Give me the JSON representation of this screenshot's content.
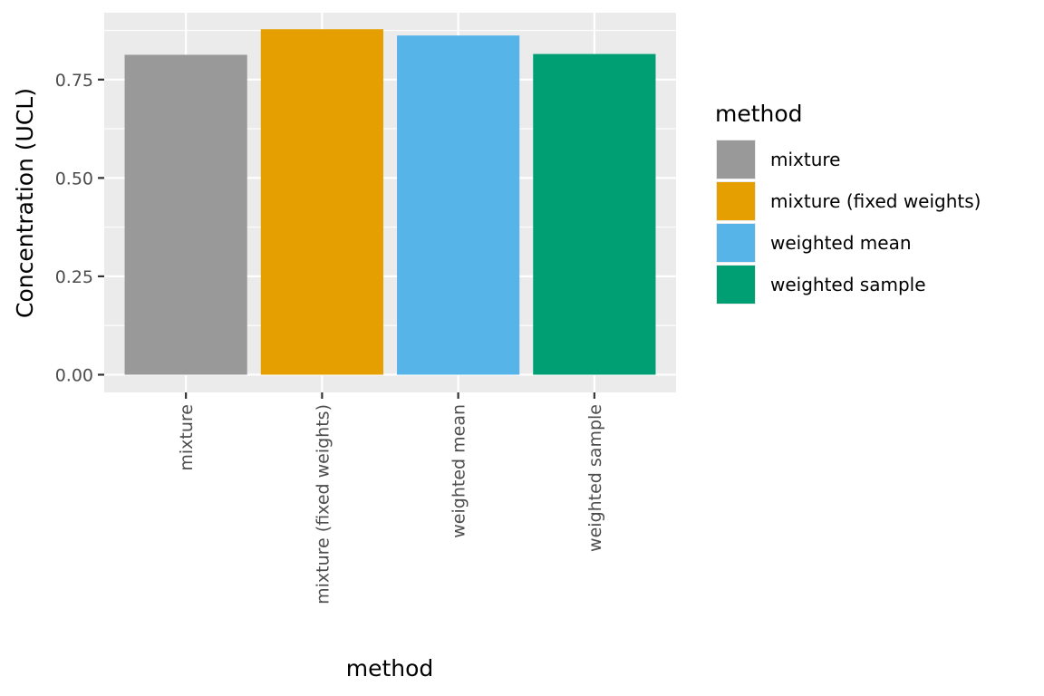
{
  "chart_data": {
    "type": "bar",
    "title": "",
    "xlabel": "method",
    "ylabel": "Concentration (UCL)",
    "categories": [
      "mixture",
      "mixture (fixed weights)",
      "weighted mean",
      "weighted sample"
    ],
    "values": [
      0.813,
      0.878,
      0.862,
      0.815
    ],
    "colors": [
      "#999999",
      "#E69F00",
      "#56B4E9",
      "#009E73"
    ],
    "ylim": [
      -0.045,
      0.92
    ],
    "yticks": [
      0,
      0.25,
      0.5,
      0.75
    ],
    "ytick_labels": [
      "0.00",
      "0.25",
      "0.50",
      "0.75"
    ],
    "grid": true,
    "panel_background": "#EBEBEB",
    "legend": {
      "title": "method",
      "position": "right",
      "entries": [
        "mixture",
        "mixture (fixed weights)",
        "weighted mean",
        "weighted sample"
      ]
    }
  }
}
